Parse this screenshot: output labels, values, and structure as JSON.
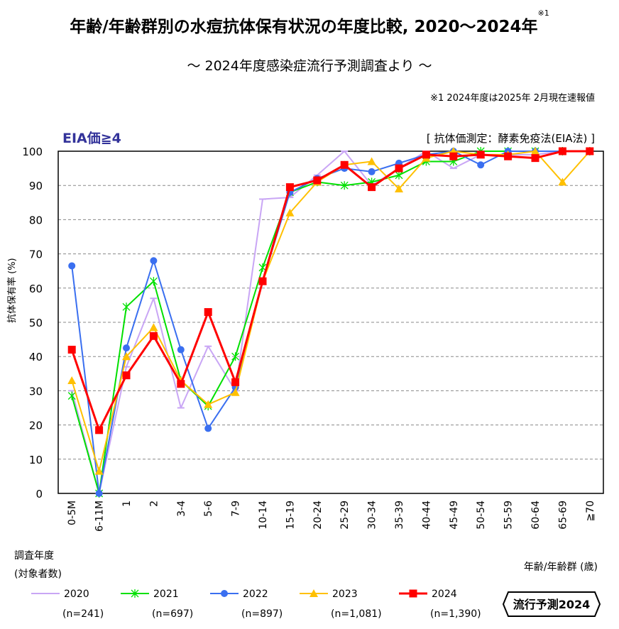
{
  "title": "年齢/年齢群別の水痘抗体保有状況の年度比較, 2020～2024年",
  "title_note_mark": "※1",
  "subtitle": "～ 2024年度感染症流行予測調査より ～",
  "note": "※1  2024年度は2025年 2月現在速報値",
  "eia_label": "EIA価≧4",
  "method_label": "[ 抗体価測定：酵素免疫法(EIA法) ]",
  "survey_label_line1": "調査年度",
  "survey_label_line2": "(対象者数)",
  "logo_text": "流行予測2024",
  "chart_data": {
    "type": "line",
    "xlabel": "年齢/年齢群 (歳)",
    "ylabel": "抗体保有率 (%)",
    "ylim": [
      0,
      100
    ],
    "yticks": [
      0,
      10,
      20,
      30,
      40,
      50,
      60,
      70,
      80,
      90,
      100
    ],
    "grid": "horizontal dashed",
    "legend": "bottom",
    "categories": [
      "0-5M",
      "6-11M",
      "1",
      "2",
      "3-4",
      "5-6",
      "7-9",
      "10-14",
      "15-19",
      "20-24",
      "25-29",
      "30-34",
      "35-39",
      "40-44",
      "45-49",
      "50-54",
      "55-59",
      "60-64",
      "65-69",
      "≧70"
    ],
    "series": [
      {
        "name": "2020",
        "n": "(n=241)",
        "color": "#c9a6f5",
        "marker": "dash",
        "values": [
          30,
          0,
          37,
          57,
          25,
          43,
          30,
          86,
          86.5,
          93,
          100,
          90,
          95,
          100,
          95,
          99,
          99,
          99,
          100,
          100
        ]
      },
      {
        "name": "2021",
        "n": "(n=697)",
        "color": "#00e000",
        "marker": "star",
        "values": [
          28.5,
          0,
          54.5,
          62,
          33,
          25.5,
          40,
          66,
          88,
          91,
          90,
          91,
          93,
          97,
          97,
          100,
          100,
          100,
          100,
          100
        ]
      },
      {
        "name": "2022",
        "n": "(n=897)",
        "color": "#3a6ff0",
        "marker": "circle",
        "values": [
          66.5,
          0,
          42.5,
          68,
          42,
          19,
          31,
          62,
          88,
          92,
          95,
          94,
          96.5,
          99,
          100,
          96,
          100,
          100,
          100,
          100
        ]
      },
      {
        "name": "2023",
        "n": "(n=1,081)",
        "color": "#ffc000",
        "marker": "triangle",
        "values": [
          33,
          6.5,
          40,
          48.5,
          33,
          26,
          29.5,
          62,
          82,
          91,
          96,
          97,
          89,
          98,
          100,
          99,
          99,
          100,
          91,
          100
        ]
      },
      {
        "name": "2024",
        "n": "(n=1,390)",
        "color": "#ff0000",
        "marker": "square",
        "values": [
          42,
          18.5,
          34.5,
          46,
          32,
          53,
          32.5,
          62,
          89.5,
          91.5,
          96,
          89.5,
          95,
          99,
          98.5,
          99,
          98.5,
          98,
          100,
          100
        ]
      }
    ]
  }
}
